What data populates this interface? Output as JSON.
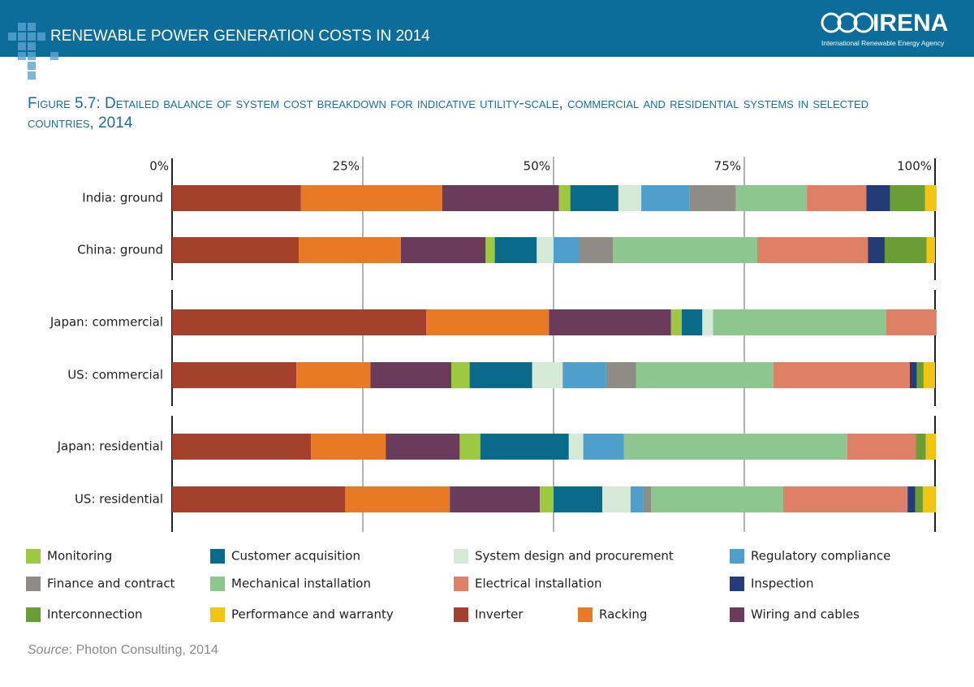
{
  "header": {
    "title": "RENEWABLE POWER GENERATION COSTS IN 2014",
    "logo": "IRENA",
    "logo_subtitle": "International Renewable Energy Agency"
  },
  "chart_data": {
    "type": "stacked-bar-horizontal",
    "title": "Figure 5.7: Detailed balance of system cost breakdown for indicative utility-scale, commercial and residential systems in selected countries, 2014",
    "categories": [
      "India: ground",
      "China: ground",
      "Japan: commercial",
      "US: commercial",
      "Japan: residential",
      "US: residential"
    ],
    "xlim": [
      0,
      100
    ],
    "xticks": [
      {
        "value": 0,
        "label": "0%"
      },
      {
        "value": 25,
        "label": "25%"
      },
      {
        "value": 50,
        "label": "50%"
      },
      {
        "value": 75,
        "label": "75%"
      },
      {
        "value": 100,
        "label": "100%"
      }
    ],
    "grid": true,
    "series": [
      {
        "name": "Inverter",
        "color": "#a3412d",
        "values": [
          16.9,
          16.6,
          33.3,
          16.3,
          18.2,
          22.7
        ]
      },
      {
        "name": "Racking",
        "color": "#e87a25",
        "values": [
          18.5,
          13.4,
          16.1,
          9.7,
          9.8,
          13.7
        ]
      },
      {
        "name": "Wiring and cables",
        "color": "#6b3b5c",
        "values": [
          15.3,
          11.1,
          16.0,
          10.6,
          9.7,
          11.8
        ]
      },
      {
        "name": "Monitoring",
        "color": "#9dc83f",
        "values": [
          1.5,
          1.2,
          1.4,
          2.4,
          2.7,
          1.8
        ]
      },
      {
        "name": "Customer acquisition",
        "color": "#0a6a8a",
        "values": [
          6.3,
          5.5,
          2.7,
          8.2,
          11.6,
          6.4
        ]
      },
      {
        "name": "System design and procurement",
        "color": "#d4ead7",
        "values": [
          3.0,
          2.2,
          1.4,
          4.0,
          1.9,
          3.7
        ]
      },
      {
        "name": "Regulatory compliance",
        "color": "#4f9fcd",
        "values": [
          6.3,
          3.3,
          0,
          5.7,
          5.3,
          1.7
        ]
      },
      {
        "name": "Finance and contract",
        "color": "#8f8c85",
        "values": [
          6.1,
          4.5,
          0,
          3.9,
          0,
          1.0
        ]
      },
      {
        "name": "Mechanical installation",
        "color": "#8dc68e",
        "values": [
          9.3,
          18.9,
          22.7,
          18.0,
          29.3,
          17.3
        ]
      },
      {
        "name": "Electrical installation",
        "color": "#de8066",
        "values": [
          7.8,
          14.5,
          6.6,
          17.9,
          9.0,
          16.3
        ]
      },
      {
        "name": "Inspection",
        "color": "#243b77",
        "values": [
          3.1,
          2.2,
          0,
          0.9,
          0,
          1.0
        ]
      },
      {
        "name": "Interconnection",
        "color": "#6a9e35",
        "values": [
          4.6,
          5.5,
          0,
          0.9,
          1.3,
          1.0
        ]
      },
      {
        "name": "Performance and warranty",
        "color": "#f1c512",
        "values": [
          1.5,
          1.1,
          0,
          1.5,
          1.3,
          1.7
        ]
      }
    ],
    "source": {
      "label": "Source",
      "text": ": Photon Consulting, 2014"
    }
  }
}
